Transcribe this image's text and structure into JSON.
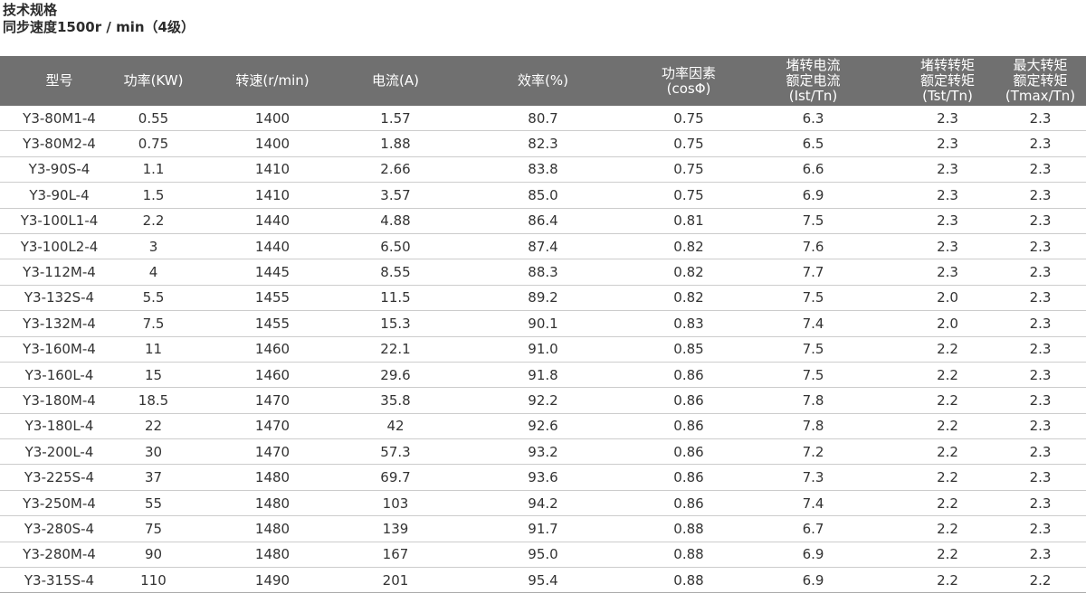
{
  "heading": {
    "line1": "技术规格",
    "line2": "同步速度1500r / min（4级）"
  },
  "table": {
    "headers": [
      [
        "型号"
      ],
      [
        "功率(KW)"
      ],
      [
        "转速(r/min)"
      ],
      [
        "电流(A)"
      ],
      [
        "效率(%)"
      ],
      [
        "功率因素",
        "(cosΦ)"
      ],
      [
        "堵转电流",
        "额定电流",
        "(Ist/Tn)"
      ],
      [
        "堵转转矩",
        "额定转矩",
        "(Tst/Tn)"
      ],
      [
        "最大转矩",
        "额定转矩",
        "(Tmax/Tn)"
      ]
    ],
    "rows": [
      [
        "Y3-80M1-4",
        "0.55",
        "1400",
        "1.57",
        "80.7",
        "0.75",
        "6.3",
        "2.3",
        "2.3"
      ],
      [
        "Y3-80M2-4",
        "0.75",
        "1400",
        "1.88",
        "82.3",
        "0.75",
        "6.5",
        "2.3",
        "2.3"
      ],
      [
        "Y3-90S-4",
        "1.1",
        "1410",
        "2.66",
        "83.8",
        "0.75",
        "6.6",
        "2.3",
        "2.3"
      ],
      [
        "Y3-90L-4",
        "1.5",
        "1410",
        "3.57",
        "85.0",
        "0.75",
        "6.9",
        "2.3",
        "2.3"
      ],
      [
        "Y3-100L1-4",
        "2.2",
        "1440",
        "4.88",
        "86.4",
        "0.81",
        "7.5",
        "2.3",
        "2.3"
      ],
      [
        "Y3-100L2-4",
        "3",
        "1440",
        "6.50",
        "87.4",
        "0.82",
        "7.6",
        "2.3",
        "2.3"
      ],
      [
        "Y3-112M-4",
        "4",
        "1445",
        "8.55",
        "88.3",
        "0.82",
        "7.7",
        "2.3",
        "2.3"
      ],
      [
        "Y3-132S-4",
        "5.5",
        "1455",
        "11.5",
        "89.2",
        "0.82",
        "7.5",
        "2.0",
        "2.3"
      ],
      [
        "Y3-132M-4",
        "7.5",
        "1455",
        "15.3",
        "90.1",
        "0.83",
        "7.4",
        "2.0",
        "2.3"
      ],
      [
        "Y3-160M-4",
        "11",
        "1460",
        "22.1",
        "91.0",
        "0.85",
        "7.5",
        "2.2",
        "2.3"
      ],
      [
        "Y3-160L-4",
        "15",
        "1460",
        "29.6",
        "91.8",
        "0.86",
        "7.5",
        "2.2",
        "2.3"
      ],
      [
        "Y3-180M-4",
        "18.5",
        "1470",
        "35.8",
        "92.2",
        "0.86",
        "7.8",
        "2.2",
        "2.3"
      ],
      [
        "Y3-180L-4",
        "22",
        "1470",
        "42",
        "92.6",
        "0.86",
        "7.8",
        "2.2",
        "2.3"
      ],
      [
        "Y3-200L-4",
        "30",
        "1470",
        "57.3",
        "93.2",
        "0.86",
        "7.2",
        "2.2",
        "2.3"
      ],
      [
        "Y3-225S-4",
        "37",
        "1480",
        "69.7",
        "93.6",
        "0.86",
        "7.3",
        "2.2",
        "2.3"
      ],
      [
        "Y3-250M-4",
        "55",
        "1480",
        "103",
        "94.2",
        "0.86",
        "7.4",
        "2.2",
        "2.3"
      ],
      [
        "Y3-280S-4",
        "75",
        "1480",
        "139",
        "91.7",
        "0.88",
        "6.7",
        "2.2",
        "2.3"
      ],
      [
        "Y3-280M-4",
        "90",
        "1480",
        "167",
        "95.0",
        "0.88",
        "6.9",
        "2.2",
        "2.3"
      ],
      [
        "Y3-315S-4",
        "110",
        "1490",
        "201",
        "95.4",
        "0.88",
        "6.9",
        "2.2",
        "2.2"
      ]
    ]
  }
}
